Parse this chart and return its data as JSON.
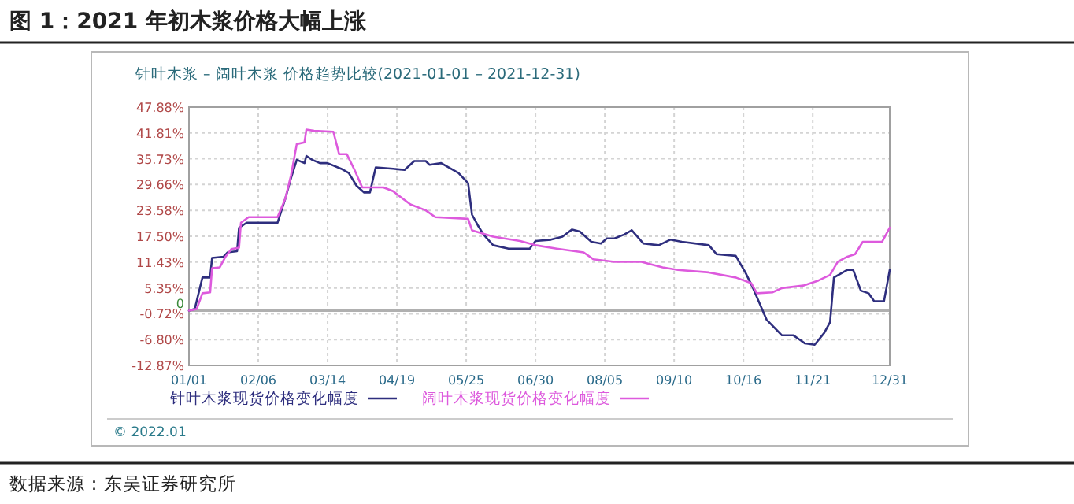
{
  "chart_data": {
    "type": "line",
    "title": "图 1：2021 年初木浆价格大幅上涨",
    "subtitle": "针叶木浆 – 阔叶木浆 价格趋势比较(2021-01-01 – 2021-12-31)",
    "annotations": [
      "© 2022.01",
      "数据来源：东吴证券研究所"
    ],
    "xlim": [
      "2021-01-01",
      "2021-12-31"
    ],
    "xticks": [
      {
        "value": "2021-01-01",
        "label": "01/01"
      },
      {
        "value": "2021-02-06",
        "label": "02/06"
      },
      {
        "value": "2021-03-14",
        "label": "03/14"
      },
      {
        "value": "2021-04-19",
        "label": "04/19"
      },
      {
        "value": "2021-05-25",
        "label": "05/25"
      },
      {
        "value": "2021-06-30",
        "label": "06/30"
      },
      {
        "value": "2021-08-05",
        "label": "08/05"
      },
      {
        "value": "2021-09-10",
        "label": "09/10"
      },
      {
        "value": "2021-10-16",
        "label": "10/16"
      },
      {
        "value": "2021-11-21",
        "label": "11/21"
      },
      {
        "value": "2021-12-31",
        "label": "12/31"
      }
    ],
    "ylim": [
      -12.87,
      47.88
    ],
    "yticks": [
      {
        "value": -12.87,
        "label": "-12.87%"
      },
      {
        "value": -6.8,
        "label": "-6.80%"
      },
      {
        "value": -0.72,
        "label": "-0.72%"
      },
      {
        "value": 5.35,
        "label": "5.35%"
      },
      {
        "value": 11.43,
        "label": "11.43%"
      },
      {
        "value": 17.5,
        "label": "17.50%"
      },
      {
        "value": 23.58,
        "label": "23.58%"
      },
      {
        "value": 29.66,
        "label": "29.66%"
      },
      {
        "value": 35.73,
        "label": "35.73%"
      },
      {
        "value": 41.81,
        "label": "41.81%"
      },
      {
        "value": 47.88,
        "label": "47.88%"
      }
    ],
    "ref_lines": [
      {
        "axis": "y",
        "value": 0,
        "label": "0",
        "color": "#b0b0b0"
      }
    ],
    "grid": true,
    "legend": "bottom",
    "marker": "none",
    "line_style": "solid",
    "series": [
      {
        "name": "针叶木浆现货价格变化幅度",
        "color": "#2e2e7e",
        "x": [
          "2021-01-01",
          "2021-01-04",
          "2021-01-08",
          "2021-01-12",
          "2021-01-13",
          "2021-01-19",
          "2021-01-21",
          "2021-01-26",
          "2021-01-27",
          "2021-01-31",
          "2021-02-16",
          "2021-02-20",
          "2021-02-23",
          "2021-02-26",
          "2021-03-02",
          "2021-03-03",
          "2021-03-06",
          "2021-03-10",
          "2021-03-14",
          "2021-03-21",
          "2021-03-25",
          "2021-03-29",
          "2021-04-02",
          "2021-04-05",
          "2021-04-06",
          "2021-04-08",
          "2021-04-17",
          "2021-04-23",
          "2021-04-28",
          "2021-05-04",
          "2021-05-06",
          "2021-05-12",
          "2021-05-21",
          "2021-05-26",
          "2021-05-28",
          "2021-05-31",
          "2021-06-03",
          "2021-06-08",
          "2021-06-16",
          "2021-06-27",
          "2021-06-30",
          "2021-07-08",
          "2021-07-14",
          "2021-07-19",
          "2021-07-23",
          "2021-07-29",
          "2021-08-03",
          "2021-08-06",
          "2021-08-10",
          "2021-08-15",
          "2021-08-19",
          "2021-08-25",
          "2021-09-02",
          "2021-09-08",
          "2021-09-14",
          "2021-09-28",
          "2021-10-02",
          "2021-10-12",
          "2021-10-17",
          "2021-10-21",
          "2021-10-28",
          "2021-11-05",
          "2021-11-11",
          "2021-11-17",
          "2021-11-22",
          "2021-11-27",
          "2021-11-30",
          "2021-12-02",
          "2021-12-09",
          "2021-12-12",
          "2021-12-16",
          "2021-12-20",
          "2021-12-23",
          "2021-12-28",
          "2021-12-31"
        ],
        "values": [
          0,
          0.4,
          7.8,
          7.8,
          12.4,
          12.7,
          13.7,
          14,
          19.5,
          20.7,
          20.7,
          26.3,
          31.2,
          35.5,
          34.7,
          36.4,
          35.5,
          34.7,
          34.7,
          33.4,
          32.4,
          29.4,
          27.8,
          27.8,
          29.8,
          33.7,
          33.4,
          33.1,
          35.2,
          35.2,
          34.3,
          34.7,
          32.4,
          30,
          22.6,
          20.1,
          17.9,
          15.4,
          14.6,
          14.6,
          16.4,
          16.7,
          17.4,
          19.1,
          18.6,
          16.2,
          15.8,
          17,
          17,
          17.9,
          18.9,
          15.8,
          15.4,
          16.7,
          16.2,
          15.4,
          13.3,
          12.9,
          9,
          5.3,
          -2.1,
          -5.8,
          -5.8,
          -7.7,
          -8,
          -5.2,
          -2.7,
          7.8,
          9.6,
          9.6,
          4.7,
          4.1,
          2.2,
          2.2,
          9.6
        ]
      },
      {
        "name": "阔叶木浆现货价格变化幅度",
        "color": "#dd5add",
        "x": [
          "2021-01-01",
          "2021-01-05",
          "2021-01-08",
          "2021-01-12",
          "2021-01-13",
          "2021-01-17",
          "2021-01-20",
          "2021-01-23",
          "2021-01-27",
          "2021-01-28",
          "2021-02-01",
          "2021-02-16",
          "2021-02-20",
          "2021-02-23",
          "2021-02-26",
          "2021-03-02",
          "2021-03-03",
          "2021-03-07",
          "2021-03-17",
          "2021-03-20",
          "2021-03-24",
          "2021-03-28",
          "2021-04-01",
          "2021-04-06",
          "2021-04-12",
          "2021-04-17",
          "2021-04-26",
          "2021-05-04",
          "2021-05-09",
          "2021-05-26",
          "2021-05-28",
          "2021-06-08",
          "2021-06-22",
          "2021-06-30",
          "2021-07-11",
          "2021-07-25",
          "2021-07-30",
          "2021-08-10",
          "2021-08-24",
          "2021-09-04",
          "2021-09-12",
          "2021-09-28",
          "2021-10-12",
          "2021-10-20",
          "2021-10-23",
          "2021-10-31",
          "2021-11-05",
          "2021-11-16",
          "2021-11-24",
          "2021-11-30",
          "2021-12-04",
          "2021-12-09",
          "2021-12-13",
          "2021-12-17",
          "2021-12-27",
          "2021-12-31"
        ],
        "values": [
          0,
          0.4,
          4.1,
          4.3,
          10,
          10.2,
          12.7,
          14.5,
          14.8,
          20.7,
          22,
          22,
          26.3,
          31.8,
          39.2,
          39.6,
          42.6,
          42.3,
          42.1,
          36.8,
          36.8,
          33.1,
          29,
          29,
          29,
          28.1,
          25,
          23.6,
          22,
          21.6,
          18.9,
          17.4,
          16.4,
          15.4,
          14.6,
          13.7,
          12.1,
          11.5,
          11.5,
          10.2,
          9.6,
          9,
          7.8,
          6.5,
          4.1,
          4.3,
          5.3,
          5.9,
          7.1,
          8.4,
          11.5,
          12.7,
          13.3,
          16.2,
          16.2,
          19.5
        ]
      }
    ]
  }
}
